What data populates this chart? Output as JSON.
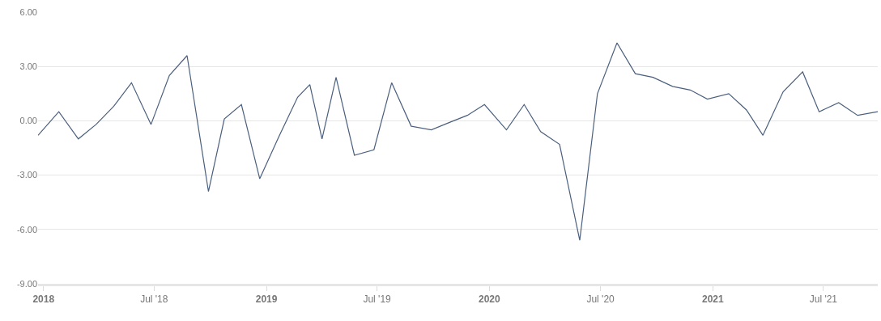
{
  "chart_data": {
    "type": "line",
    "x": [
      "2017-12-23",
      "2018-01-26",
      "2018-02-27",
      "2018-03-28",
      "2018-04-26",
      "2018-05-25",
      "2018-06-26",
      "2018-07-26",
      "2018-08-24",
      "2018-09-28",
      "2018-10-24",
      "2018-11-21",
      "2018-12-21",
      "2019-01-21",
      "2019-02-21",
      "2019-03-13",
      "2019-04-02",
      "2019-04-25",
      "2019-05-25",
      "2019-06-26",
      "2019-07-25",
      "2019-08-26",
      "2019-09-28",
      "2019-10-27",
      "2019-11-26",
      "2019-12-24",
      "2020-01-29",
      "2020-02-27",
      "2020-03-25",
      "2020-04-25",
      "2020-05-28",
      "2020-06-26",
      "2020-07-28",
      "2020-08-27",
      "2020-09-25",
      "2020-10-27",
      "2020-11-25",
      "2020-12-23",
      "2021-01-27",
      "2021-02-25",
      "2021-03-24",
      "2021-04-26",
      "2021-05-28",
      "2021-06-24",
      "2021-07-26",
      "2021-08-26",
      "2021-09-28"
    ],
    "series": [
      {
        "color": "#4a5f7e",
        "values": [
          -0.8,
          0.5,
          -1.0,
          -0.2,
          0.8,
          2.1,
          -0.2,
          2.5,
          3.6,
          -3.9,
          0.1,
          0.9,
          -3.2,
          -0.9,
          1.3,
          2.0,
          -1.0,
          2.4,
          -1.9,
          -1.6,
          2.1,
          -0.3,
          -0.5,
          -0.1,
          0.3,
          0.9,
          -0.5,
          0.9,
          -0.6,
          -1.3,
          -6.6,
          1.5,
          4.3,
          2.6,
          2.4,
          1.9,
          1.7,
          1.2,
          1.5,
          0.6,
          -0.8,
          1.6,
          2.7,
          0.5,
          1.0,
          0.3,
          0.5
        ]
      }
    ],
    "xlim": [
      "2017-12-23",
      "2021-09-28"
    ],
    "xticks": [
      {
        "value": "2018-01-01",
        "label": "2018"
      },
      {
        "value": "2018-07-01",
        "label": "Jul '18"
      },
      {
        "value": "2019-01-01",
        "label": "2019"
      },
      {
        "value": "2019-07-01",
        "label": "Jul '19"
      },
      {
        "value": "2020-01-01",
        "label": "2020"
      },
      {
        "value": "2020-07-01",
        "label": "Jul '20"
      },
      {
        "value": "2021-01-01",
        "label": "2021"
      },
      {
        "value": "2021-07-01",
        "label": "Jul '21"
      }
    ],
    "ylim": [
      -9,
      6
    ],
    "yticks": [
      {
        "value": -9,
        "label": "-9.00"
      },
      {
        "value": -6,
        "label": "-6.00"
      },
      {
        "value": -3,
        "label": "-3.00"
      },
      {
        "value": 0,
        "label": "0.00"
      },
      {
        "value": 3,
        "label": "3.00"
      },
      {
        "value": 6,
        "label": "6.00"
      }
    ],
    "grid": "y",
    "legend": false,
    "marker": "none",
    "line_style": "solid"
  }
}
